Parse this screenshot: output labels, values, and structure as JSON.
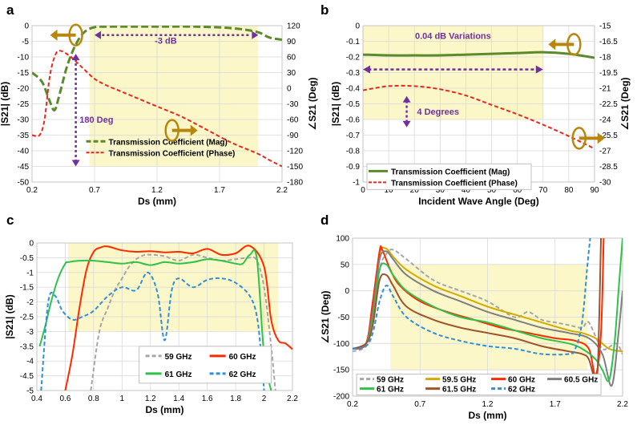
{
  "chart_data": [
    {
      "panel": "a",
      "type": "line",
      "xlabel": "Ds (mm)",
      "ylabel": "|S21| (dB)",
      "y2label": "∠S21 (Deg)",
      "xlim": [
        0.2,
        2.2
      ],
      "ylim": [
        -50,
        0
      ],
      "y2lim": [
        -180,
        120
      ],
      "xticks": [
        0.2,
        0.7,
        1.2,
        1.7,
        2.2
      ],
      "yticks": [
        -50,
        -45,
        -40,
        -35,
        -30,
        -25,
        -20,
        -15,
        -10,
        -5,
        0
      ],
      "y2ticks": [
        -180,
        -150,
        -120,
        -90,
        -60,
        -30,
        0,
        30,
        60,
        90,
        120
      ],
      "highlight": {
        "x": [
          0.66,
          2.01
        ],
        "y": [
          -45,
          0
        ]
      },
      "annotations": [
        "-3 dB",
        "180 Deg"
      ],
      "series": [
        {
          "name": "Transmission Coefficient (Mag)",
          "axis": "left",
          "color": "#5a8a2c",
          "dashed": true,
          "x": [
            0.2,
            0.28,
            0.34,
            0.38,
            0.42,
            0.48,
            0.55,
            0.62,
            0.7,
            0.8,
            1.0,
            1.2,
            1.5,
            1.8,
            2.0,
            2.1,
            2.2
          ],
          "y": [
            -15,
            -18,
            -24,
            -27,
            -22,
            -13,
            -6,
            -2,
            -0.5,
            -0.3,
            -0.3,
            -0.3,
            -0.3,
            -0.8,
            -2,
            -3.8,
            -4.5
          ]
        },
        {
          "name": "Transmission Coefficient (Phase)",
          "axis": "right",
          "color": "#e8271c",
          "dashed": true,
          "x": [
            0.2,
            0.26,
            0.3,
            0.34,
            0.38,
            0.42,
            0.5,
            0.6,
            0.7,
            0.8,
            0.9,
            1.0,
            1.2,
            1.4,
            1.6,
            1.8,
            2.0,
            2.1,
            2.2
          ],
          "y": [
            -90,
            -90,
            -60,
            20,
            60,
            72,
            62,
            40,
            18,
            5,
            -5,
            -15,
            -35,
            -55,
            -80,
            -105,
            -125,
            -138,
            -150
          ]
        }
      ]
    },
    {
      "panel": "b",
      "type": "line",
      "xlabel": "Incident Wave Angle (Deg)",
      "ylabel": "|S21| (dB)",
      "y2label": "∠S21 (Deg)",
      "xlim": [
        0,
        90
      ],
      "ylim": [
        -1,
        0
      ],
      "y2lim": [
        -30,
        -15
      ],
      "xticks": [
        0,
        10,
        20,
        30,
        40,
        50,
        60,
        70,
        80,
        90
      ],
      "yticks": [
        -1,
        -0.9,
        -0.8,
        -0.7,
        -0.6,
        -0.5,
        -0.4,
        -0.3,
        -0.2,
        -0.1,
        0
      ],
      "y2ticks": [
        -30,
        -28.5,
        -27,
        -25.5,
        -24,
        -22.5,
        -21,
        -19.5,
        -18,
        -16.5,
        -15
      ],
      "highlight": {
        "x": [
          0,
          70
        ],
        "y": [
          -0.6,
          0
        ]
      },
      "annotations": [
        "0.04 dB Variations",
        "4 Degrees"
      ],
      "series": [
        {
          "name": "Transmission Coefficient (Mag)",
          "axis": "left",
          "color": "#5a8a2c",
          "dashed": false,
          "x": [
            0,
            10,
            20,
            30,
            40,
            50,
            60,
            70,
            80,
            90
          ],
          "y": [
            -0.185,
            -0.19,
            -0.19,
            -0.19,
            -0.185,
            -0.18,
            -0.175,
            -0.17,
            -0.18,
            -0.205
          ]
        },
        {
          "name": "Transmission Coefficient (Phase)",
          "axis": "right",
          "color": "#e8271c",
          "dashed": true,
          "x": [
            0,
            10,
            20,
            30,
            40,
            50,
            60,
            70,
            80,
            90
          ],
          "y": [
            -21.2,
            -20.8,
            -20.8,
            -21.1,
            -21.7,
            -22.6,
            -23.5,
            -24.5,
            -25.6,
            -26.8
          ]
        }
      ]
    },
    {
      "panel": "c",
      "type": "line",
      "xlabel": "Ds (mm)",
      "ylabel": "|S21| (dB)",
      "xlim": [
        0.4,
        2.2
      ],
      "ylim": [
        -5,
        0
      ],
      "xticks": [
        0.4,
        0.6,
        0.8,
        1.0,
        1.2,
        1.4,
        1.6,
        1.8,
        2.0,
        2.2
      ],
      "yticks": [
        -5,
        -4.5,
        -4,
        -3.5,
        -3,
        -2.5,
        -2,
        -1.5,
        -1,
        -0.5,
        0
      ],
      "highlight": {
        "x": [
          0.62,
          2.1
        ],
        "y": [
          -3,
          0
        ]
      },
      "series": [
        {
          "name": "59 GHz",
          "color": "#a6a6a6",
          "dashed": true,
          "x": [
            0.78,
            0.84,
            0.9,
            0.95,
            1.0,
            1.05,
            1.1,
            1.15,
            1.2,
            1.3,
            1.4,
            1.5,
            1.6,
            1.7,
            1.8,
            1.9,
            1.95,
            2.0,
            2.05,
            2.08
          ],
          "y": [
            -5,
            -3,
            -2.2,
            -1.6,
            -1.2,
            -0.8,
            -0.55,
            -0.42,
            -0.4,
            -0.45,
            -0.6,
            -0.4,
            -0.5,
            -0.6,
            -0.55,
            -0.5,
            -0.6,
            -1.5,
            -3.5,
            -5
          ]
        },
        {
          "name": "60 GHz",
          "color": "#ff2a00",
          "dashed": false,
          "x": [
            0.6,
            0.65,
            0.7,
            0.75,
            0.8,
            0.85,
            0.9,
            1.0,
            1.1,
            1.2,
            1.3,
            1.4,
            1.5,
            1.6,
            1.7,
            1.8,
            1.9,
            2.0,
            2.05,
            2.1,
            2.15,
            2.2
          ],
          "y": [
            -5,
            -3.8,
            -2.2,
            -0.9,
            -0.3,
            -0.15,
            -0.12,
            -0.25,
            -0.3,
            -0.28,
            -0.32,
            -0.3,
            -0.35,
            -0.2,
            -0.4,
            -0.35,
            -0.1,
            -0.8,
            -2.6,
            -3.3,
            -3.4,
            -3.6
          ]
        },
        {
          "name": "61 GHz",
          "color": "#2ec24a",
          "dashed": false,
          "x": [
            0.42,
            0.46,
            0.5,
            0.55,
            0.6,
            0.62,
            0.7,
            0.8,
            0.9,
            1.0,
            1.1,
            1.2,
            1.3,
            1.4,
            1.5,
            1.6,
            1.7,
            1.8,
            1.85,
            1.9,
            1.95,
            2.0,
            2.05
          ],
          "y": [
            -3.5,
            -2.8,
            -2.0,
            -1.2,
            -0.7,
            -0.65,
            -0.6,
            -0.6,
            -0.65,
            -0.7,
            -0.65,
            -0.75,
            -0.65,
            -0.7,
            -0.65,
            -0.55,
            -0.6,
            -0.7,
            -0.7,
            -0.4,
            -0.55,
            -3.8,
            -5
          ]
        },
        {
          "name": "62 GHz",
          "color": "#2f8fd8",
          "dashed": true,
          "x": [
            0.43,
            0.48,
            0.53,
            0.58,
            0.65,
            0.72,
            0.8,
            0.9,
            1.0,
            1.1,
            1.18,
            1.25,
            1.3,
            1.35,
            1.4,
            1.5,
            1.6,
            1.7,
            1.8,
            1.9,
            1.95,
            1.98,
            2.0
          ],
          "y": [
            -5,
            -2.0,
            -1.8,
            -2.3,
            -2.6,
            -2.5,
            -2.3,
            -1.8,
            -1.5,
            -1.6,
            -1.0,
            -1.7,
            -3.3,
            -1.6,
            -1.2,
            -1.5,
            -1.25,
            -1.2,
            -1.35,
            -1.8,
            -2.5,
            -3.8,
            -5
          ]
        }
      ],
      "legend": [
        "59 GHz",
        "60 GHz",
        "61 GHz",
        "62 GHz"
      ]
    },
    {
      "panel": "d",
      "type": "line",
      "xlabel": "Ds (mm)",
      "ylabel": "∠S21 (Deg)",
      "xlim": [
        0.2,
        2.2
      ],
      "ylim": [
        -200,
        100
      ],
      "xticks": [
        0.2,
        0.7,
        1.2,
        1.7,
        2.2
      ],
      "yticks": [
        -200,
        -150,
        -100,
        -50,
        0,
        50,
        100
      ],
      "highlight": {
        "x": [
          0.48,
          1.94
        ],
        "y": [
          -150,
          50
        ]
      },
      "series": [
        {
          "name": "59 GHz",
          "color": "#a6a6a6",
          "dashed": true,
          "x": [
            0.2,
            0.3,
            0.35,
            0.4,
            0.45,
            0.5,
            0.6,
            0.8,
            1.0,
            1.2,
            1.4,
            1.5,
            1.6,
            1.7,
            1.8,
            1.9,
            1.95,
            2.05,
            2.15,
            2.2
          ],
          "y": [
            -115,
            -105,
            -60,
            40,
            70,
            78,
            60,
            20,
            0,
            -20,
            -50,
            -40,
            -55,
            -60,
            -65,
            -70,
            -60,
            -110,
            -100,
            -120
          ]
        },
        {
          "name": "59.5 GHz",
          "color": "#d4aa00",
          "dashed": false,
          "x": [
            0.2,
            0.3,
            0.35,
            0.4,
            0.45,
            0.5,
            0.6,
            0.8,
            1.0,
            1.2,
            1.4,
            1.6,
            1.8,
            1.9,
            2.0,
            2.1,
            2.2
          ],
          "y": [
            -110,
            -100,
            -30,
            70,
            80,
            65,
            40,
            10,
            -10,
            -30,
            -45,
            -60,
            -75,
            -80,
            -90,
            -110,
            -115
          ]
        },
        {
          "name": "60 GHz",
          "color": "#ff2a00",
          "dashed": false,
          "x": [
            0.2,
            0.3,
            0.35,
            0.4,
            0.42,
            0.48,
            0.55,
            0.7,
            0.9,
            1.1,
            1.3,
            1.5,
            1.7,
            1.85,
            1.95,
            2.0,
            2.04,
            2.06
          ],
          "y": [
            -110,
            -100,
            -20,
            75,
            78,
            40,
            10,
            -20,
            -40,
            -55,
            -70,
            -80,
            -90,
            -95,
            -110,
            -160,
            -80,
            100
          ]
        },
        {
          "name": "60.5 GHz",
          "color": "#7f7f7f",
          "dashed": false,
          "x": [
            0.2,
            0.3,
            0.35,
            0.4,
            0.45,
            0.5,
            0.6,
            0.8,
            1.0,
            1.2,
            1.4,
            1.6,
            1.8,
            1.95,
            2.05,
            2.12,
            2.17,
            2.2
          ],
          "y": [
            -110,
            -100,
            -40,
            60,
            75,
            60,
            30,
            0,
            -20,
            -40,
            -55,
            -70,
            -80,
            -90,
            -120,
            -180,
            -80,
            0
          ]
        },
        {
          "name": "61 GHz",
          "color": "#2ec24a",
          "dashed": false,
          "x": [
            0.2,
            0.3,
            0.35,
            0.4,
            0.45,
            0.5,
            0.6,
            0.8,
            1.0,
            1.2,
            1.4,
            1.6,
            1.8,
            1.9,
            2.0,
            2.05,
            2.1,
            2.14,
            2.17,
            2.2
          ],
          "y": [
            -110,
            -100,
            -55,
            40,
            50,
            30,
            0,
            -30,
            -50,
            -60,
            -75,
            -90,
            -100,
            -110,
            -130,
            -150,
            -170,
            -100,
            0,
            100
          ]
        },
        {
          "name": "61.5 GHz",
          "color": "#a0522d",
          "dashed": false,
          "x": [
            0.2,
            0.3,
            0.35,
            0.4,
            0.45,
            0.5,
            0.6,
            0.8,
            1.0,
            1.2,
            1.4,
            1.6,
            1.8,
            1.9,
            1.95,
            2.0,
            2.02,
            2.04
          ],
          "y": [
            -110,
            -100,
            -65,
            20,
            30,
            10,
            -30,
            -55,
            -70,
            -80,
            -90,
            -105,
            -115,
            -120,
            -130,
            -170,
            -120,
            100
          ]
        },
        {
          "name": "62 GHz",
          "color": "#2f8fd8",
          "dashed": true,
          "x": [
            0.2,
            0.3,
            0.35,
            0.4,
            0.45,
            0.5,
            0.6,
            0.8,
            1.0,
            1.2,
            1.4,
            1.6,
            1.8,
            1.85,
            1.9,
            1.94,
            1.96
          ],
          "y": [
            -110,
            -105,
            -80,
            -20,
            10,
            -10,
            -50,
            -80,
            -95,
            -105,
            -110,
            -120,
            -120,
            -110,
            -60,
            50,
            100
          ]
        }
      ],
      "legend": [
        "59 GHz",
        "59.5 GHz",
        "60 GHz",
        "60.5 GHz",
        "61 GHz",
        "61.5 GHz",
        "62 GHz"
      ]
    }
  ]
}
